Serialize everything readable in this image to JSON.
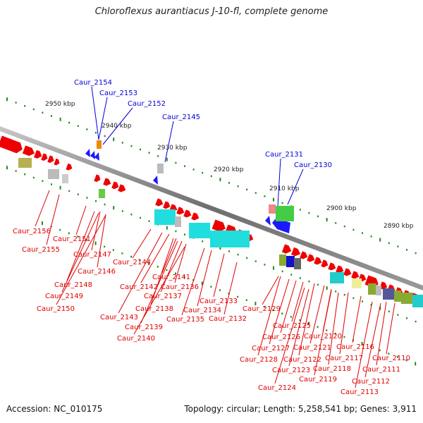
{
  "title": "Chloroflexus aurantiacus J-10-fl, complete genome",
  "footer": {
    "accession": "Accession: NC_010175",
    "stats": "Topology: circular; Length: 5,258,541 bp; Genes: 3,911"
  },
  "colors": {
    "forward_strand": "#ee0000",
    "reverse_strand": "#1a1aff",
    "backbone": "#808080",
    "tick": "#1f8a1f",
    "label_red": "#e00000",
    "label_blue": "#0000dd"
  },
  "kbp_labels": [
    "2950 kbp",
    "2940 kbp",
    "2930 kbp",
    "2920 kbp",
    "2910 kbp",
    "2900 kbp",
    "2890 kbp"
  ],
  "blue_labels": [
    "Caur_2154",
    "Caur_2153",
    "Caur_2152",
    "Caur_2145",
    "Caur_2131",
    "Caur_2130"
  ],
  "red_labels": [
    "Caur_2156",
    "Caur_2155",
    "Caur_2151",
    "Caur_2147",
    "Caur_2146",
    "Caur_2148",
    "Caur_2149",
    "Caur_2150",
    "Caur_2144",
    "Caur_2141",
    "Caur_2142",
    "Caur_2137",
    "Caur_2136",
    "Caur_2138",
    "Caur_2143",
    "Caur_2139",
    "Caur_2140",
    "Caur_2133",
    "Caur_2134",
    "Caur_2135",
    "Caur_2132",
    "Caur_2129",
    "Caur_2125",
    "Caur_2126",
    "Caur_2120",
    "Caur_2127",
    "Caur_2121",
    "Caur_2116",
    "Caur_2128",
    "Caur_2122",
    "Caur_2117",
    "Caur_2110",
    "Caur_2123",
    "Caur_2118",
    "Caur_2111",
    "Caur_2119",
    "Caur_2112",
    "Caur_2124",
    "Caur_2113"
  ]
}
